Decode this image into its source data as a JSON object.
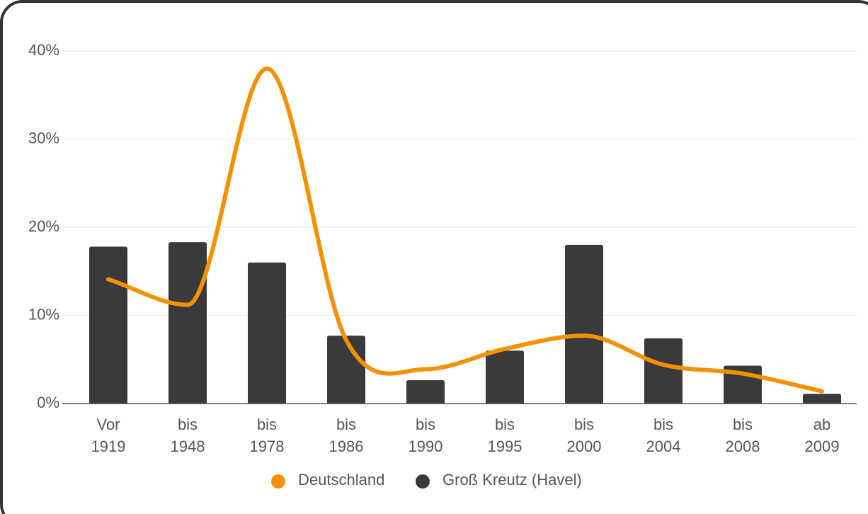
{
  "chart_data": {
    "type": "bar",
    "categories": [
      [
        "Vor",
        "1919"
      ],
      [
        "bis",
        "1948"
      ],
      [
        "bis",
        "1978"
      ],
      [
        "bis",
        "1986"
      ],
      [
        "bis",
        "1990"
      ],
      [
        "bis",
        "1995"
      ],
      [
        "bis",
        "2000"
      ],
      [
        "bis",
        "2004"
      ],
      [
        "bis",
        "2008"
      ],
      [
        "ab",
        "2009"
      ]
    ],
    "series": [
      {
        "name": "Deutschland",
        "type": "line",
        "color": "#f39200",
        "values": [
          14.1,
          11.2,
          38.0,
          7.2,
          3.9,
          6.2,
          7.7,
          4.4,
          3.4,
          1.4
        ]
      },
      {
        "name": "Groß Kreutz (Havel)",
        "type": "bar",
        "color": "#3a393b",
        "values": [
          17.8,
          18.3,
          16.0,
          7.7,
          2.65,
          6.0,
          18.0,
          7.4,
          4.3,
          1.1
        ]
      }
    ],
    "ylim": [
      0,
      40
    ],
    "yticks": [
      {
        "value": 0,
        "label": "0%"
      },
      {
        "value": 10,
        "label": "10%"
      },
      {
        "value": 20,
        "label": "20%"
      },
      {
        "value": 30,
        "label": "30%"
      },
      {
        "value": 40,
        "label": "40%"
      }
    ],
    "grid": true,
    "legend": "bottom"
  }
}
